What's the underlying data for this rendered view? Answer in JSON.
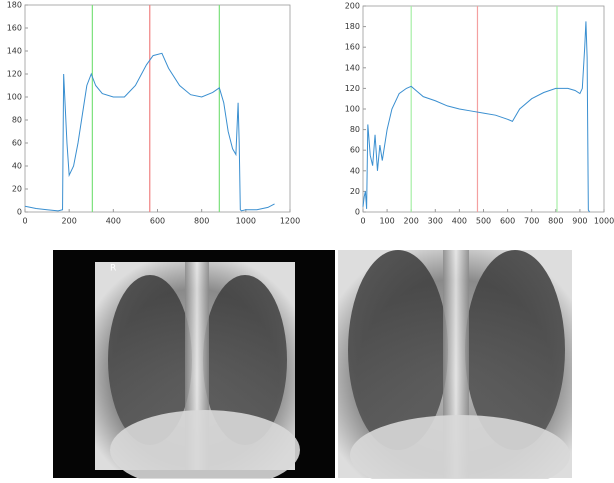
{
  "chart_data": [
    {
      "type": "line",
      "xlim": [
        0,
        1200
      ],
      "xticks": [
        0,
        200,
        400,
        600,
        800,
        1000,
        1200
      ],
      "ylim": [
        0,
        180
      ],
      "yticks": [
        0,
        20,
        40,
        60,
        80,
        100,
        120,
        140,
        160,
        180
      ],
      "x": [
        0,
        50,
        100,
        150,
        170,
        175,
        180,
        190,
        200,
        220,
        240,
        260,
        280,
        300,
        320,
        350,
        400,
        450,
        500,
        550,
        580,
        620,
        650,
        700,
        750,
        800,
        850,
        880,
        900,
        920,
        940,
        955,
        965,
        970,
        975,
        980,
        1000,
        1050,
        1100,
        1130
      ],
      "series": [
        {
          "color": "#3a8fd0",
          "values": [
            5,
            3,
            2,
            1,
            2,
            120,
            100,
            60,
            32,
            40,
            60,
            85,
            110,
            120,
            110,
            103,
            100,
            100,
            110,
            128,
            136,
            138,
            125,
            110,
            102,
            100,
            104,
            108,
            95,
            70,
            55,
            50,
            95,
            60,
            2,
            1,
            2,
            2,
            4,
            7
          ]
        }
      ],
      "vlines": [
        {
          "x": 305,
          "color": "#7be07b"
        },
        {
          "x": 565,
          "color": "#f08080"
        },
        {
          "x": 880,
          "color": "#7be07b"
        }
      ]
    },
    {
      "type": "line",
      "xlim": [
        0,
        1000
      ],
      "xticks": [
        0,
        100,
        200,
        300,
        400,
        500,
        600,
        700,
        800,
        900,
        1000
      ],
      "ylim": [
        0,
        200
      ],
      "yticks": [
        0,
        20,
        40,
        60,
        80,
        100,
        120,
        140,
        160,
        180,
        200
      ],
      "x": [
        0,
        5,
        10,
        15,
        20,
        30,
        40,
        50,
        60,
        70,
        80,
        100,
        120,
        150,
        180,
        200,
        220,
        250,
        300,
        350,
        400,
        450,
        500,
        550,
        600,
        620,
        650,
        700,
        750,
        800,
        850,
        880,
        900,
        910,
        920,
        925,
        930,
        935,
        940
      ],
      "series": [
        {
          "color": "#3a8fd0",
          "values": [
            5,
            15,
            20,
            3,
            85,
            55,
            45,
            75,
            40,
            65,
            50,
            80,
            100,
            115,
            120,
            122,
            118,
            112,
            108,
            103,
            100,
            98,
            96,
            94,
            90,
            88,
            100,
            110,
            116,
            120,
            120,
            118,
            115,
            120,
            160,
            185,
            150,
            2,
            0
          ]
        }
      ],
      "vlines": [
        {
          "x": 200,
          "color": "#a6eea6"
        },
        {
          "x": 475,
          "color": "#f4a0a0"
        },
        {
          "x": 805,
          "color": "#a6eea6"
        }
      ]
    }
  ],
  "xray_marker": "R"
}
